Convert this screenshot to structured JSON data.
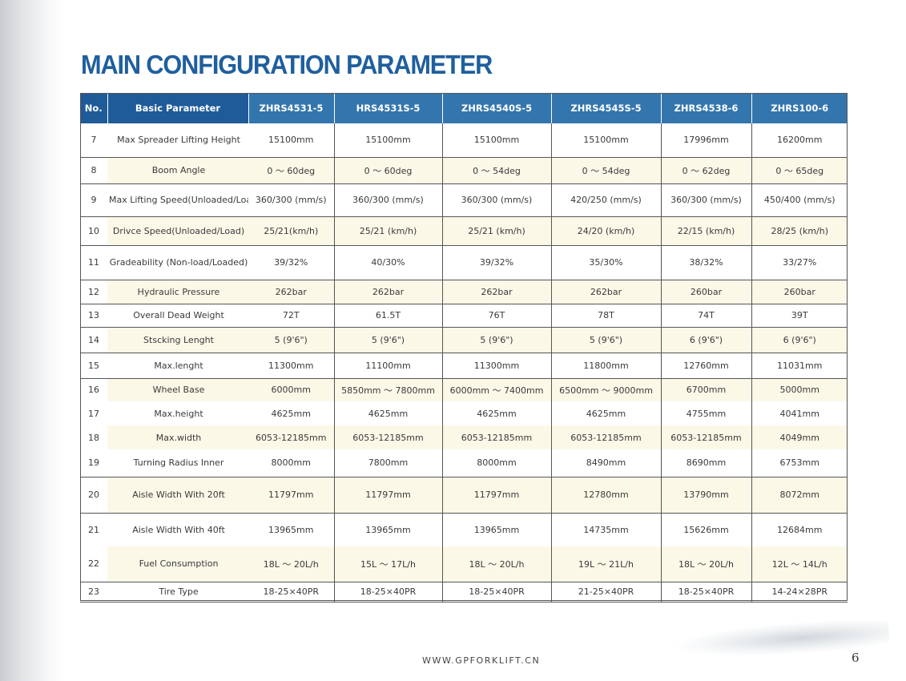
{
  "page": {
    "title": "MAIN CONFIGURATION PARAMETER",
    "footer_url": "WWW.GPFORKLIFT.CN",
    "page_number": "6"
  },
  "table": {
    "headers": [
      "No.",
      "Basic Parameter",
      "ZHRS4531-5",
      "HRS4531S-5",
      "ZHRS4540S-5",
      "ZHRS4545S-5",
      "ZHRS4538-6",
      "ZHRS100-6"
    ],
    "rows": [
      {
        "no": "7",
        "param": "Max Spreader Lifting Height",
        "values": [
          "15100mm",
          "15100mm",
          "15100mm",
          "15100mm",
          "17996mm",
          "16200mm"
        ]
      },
      {
        "no": "8",
        "param": "Boom Angle",
        "values": [
          "0 ～ 60deg",
          "0 ～ 60deg",
          "0 ～ 54deg",
          "0 ～ 54deg",
          "0 ～ 62deg",
          "0 ～ 65deg"
        ]
      },
      {
        "no": "9",
        "param": "Max Lifting Speed(Unloaded/Load)",
        "values": [
          "360/300 (mm/s)",
          "360/300 (mm/s)",
          "360/300 (mm/s)",
          "420/250 (mm/s)",
          "360/300 (mm/s)",
          "450/400 (mm/s)"
        ]
      },
      {
        "no": "10",
        "param": "Drivce Speed(Unloaded/Load)",
        "values": [
          "25/21(km/h)",
          "25/21 (km/h)",
          "25/21 (km/h)",
          "24/20 (km/h)",
          "22/15 (km/h)",
          "28/25 (km/h)"
        ]
      },
      {
        "no": "11",
        "param": "Gradeability (Non-load/Loaded)",
        "values": [
          "39/32%",
          "40/30%",
          "39/32%",
          "35/30%",
          "38/32%",
          "33/27%"
        ]
      },
      {
        "no": "12",
        "param": "Hydraulic Pressure",
        "values": [
          "262bar",
          "262bar",
          "262bar",
          "262bar",
          "260bar",
          "260bar"
        ]
      },
      {
        "no": "13",
        "param": "Overall Dead Weight",
        "values": [
          "72T",
          "61.5T",
          "76T",
          "78T",
          "74T",
          "39T"
        ]
      },
      {
        "no": "14",
        "param": "Stscking Lenght",
        "values": [
          "5 (9'6\")",
          "5 (9'6\")",
          "5 (9'6\")",
          "5 (9'6\")",
          "6 (9'6\")",
          "6 (9'6\")"
        ]
      },
      {
        "no": "15",
        "param": "Max.lenght",
        "values": [
          "11300mm",
          "11100mm",
          "11300mm",
          "11800mm",
          "12760mm",
          "11031mm"
        ]
      },
      {
        "no": "16",
        "param": "Wheel Base",
        "values": [
          "6000mm",
          "5850mm ～ 7800mm",
          "6000mm ～ 7400mm",
          "6500mm ～ 9000mm",
          "6700mm",
          "5000mm"
        ]
      },
      {
        "no": "17",
        "param": "Max.height",
        "values": [
          "4625mm",
          "4625mm",
          "4625mm",
          "4625mm",
          "4755mm",
          "4041mm"
        ]
      },
      {
        "no": "18",
        "param": "Max.width",
        "values": [
          "6053-12185mm",
          "6053-12185mm",
          "6053-12185mm",
          "6053-12185mm",
          "6053-12185mm",
          "4049mm"
        ]
      },
      {
        "no": "19",
        "param": "Turning Radius Inner",
        "values": [
          "8000mm",
          "7800mm",
          "8000mm",
          "8490mm",
          "8690mm",
          "6753mm"
        ]
      },
      {
        "no": "20",
        "param": "Aisle Width With 20ft",
        "values": [
          "11797mm",
          "11797mm",
          "11797mm",
          "12780mm",
          "13790mm",
          "8072mm"
        ]
      },
      {
        "no": "21",
        "param": "Aisle Width With 40ft",
        "values": [
          "13965mm",
          "13965mm",
          "13965mm",
          "14735mm",
          "15626mm",
          "12684mm"
        ]
      },
      {
        "no": "22",
        "param": "Fuel Consumption",
        "values": [
          "18L ～ 20L/h",
          "15L ～ 17L/h",
          "18L ～ 20L/h",
          "19L ～ 21L/h",
          "18L ～ 20L/h",
          "12L ～ 14L/h"
        ]
      },
      {
        "no": "23",
        "param": "Tire Type",
        "values": [
          "18-25×40PR",
          "18-25×40PR",
          "18-25×40PR",
          "21-25×40PR",
          "18-25×40PR",
          "14-24×28PR"
        ]
      }
    ]
  }
}
